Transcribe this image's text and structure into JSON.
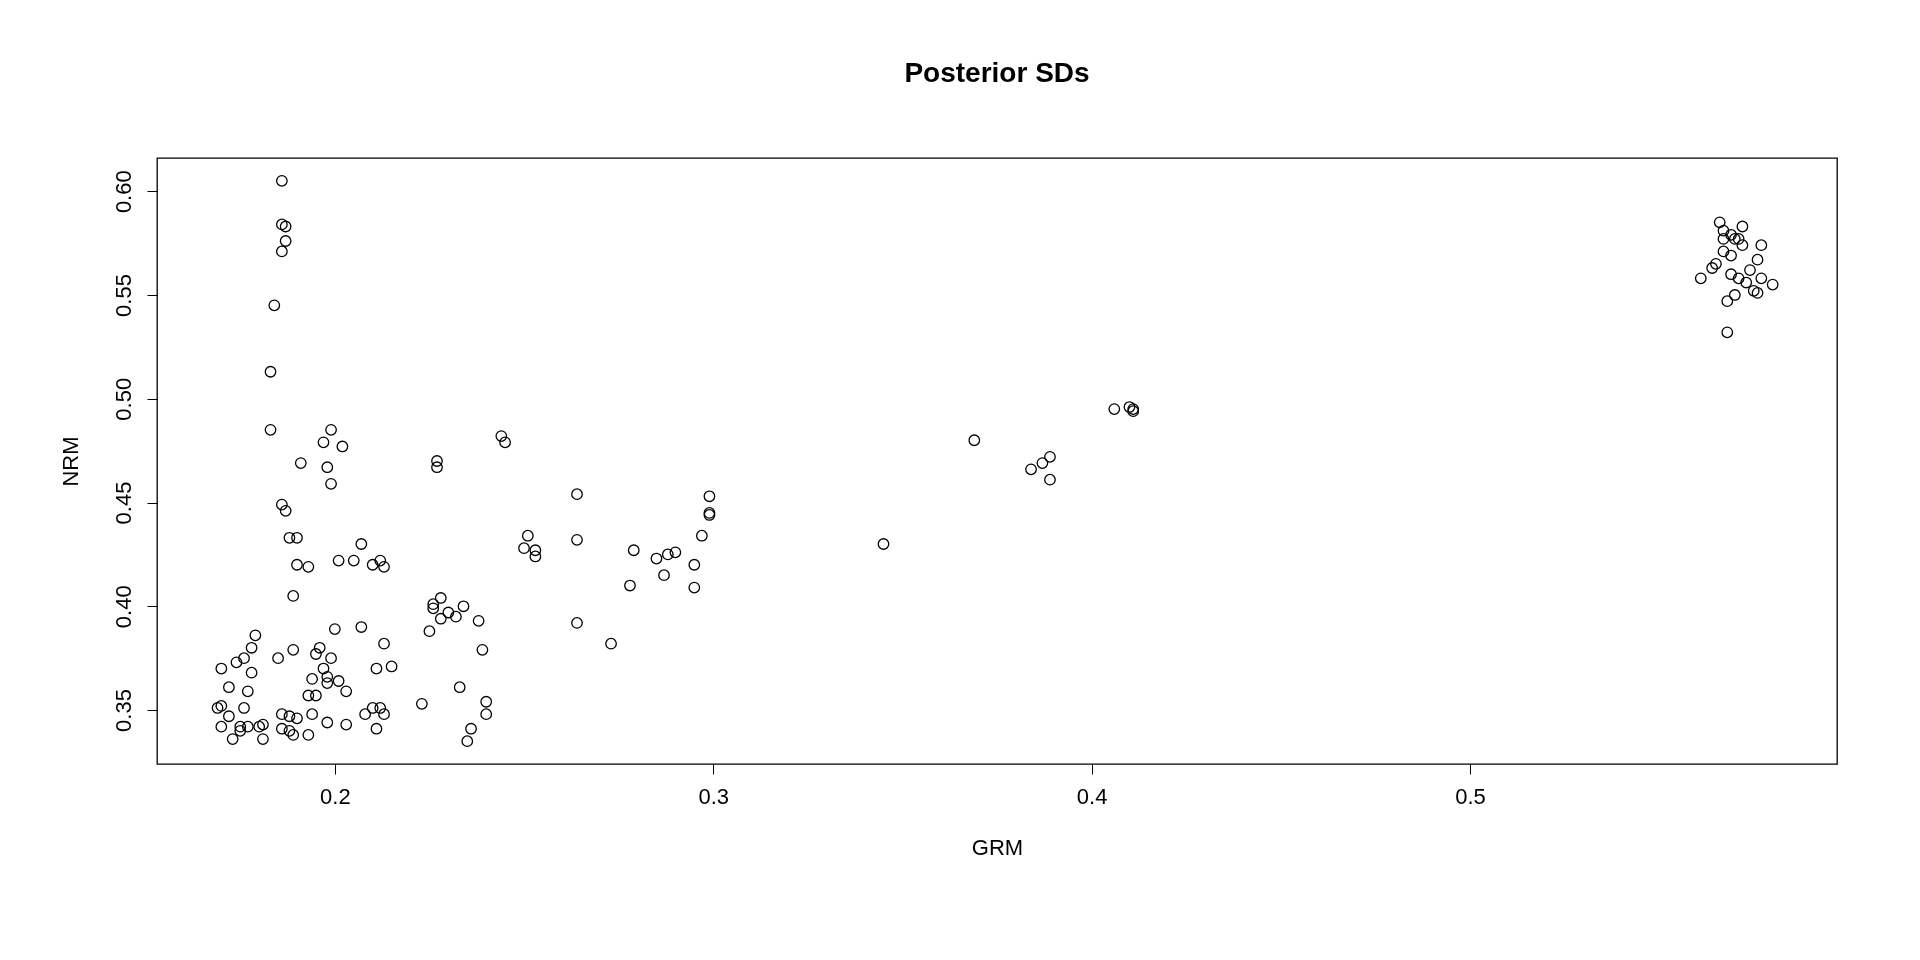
{
  "chart_data": {
    "type": "scatter",
    "title": "Posterior SDs",
    "xlabel": "GRM",
    "ylabel": "NRM",
    "marker": "circle",
    "grid": false,
    "xlim": [
      0.153,
      0.597
    ],
    "ylim": [
      0.324,
      0.616
    ],
    "xticks": [
      0.2,
      0.3,
      0.4,
      0.5
    ],
    "yticks": [
      0.35,
      {
        "value": 0.4,
        "label": "0.40"
      },
      0.45,
      {
        "value": 0.5,
        "label": "0.50"
      },
      0.55,
      {
        "value": 0.6,
        "label": "0.60"
      }
    ],
    "series": [
      {
        "color": "#000000",
        "x": [
          0.186,
          0.186,
          0.187,
          0.187,
          0.186,
          0.184,
          0.183,
          0.183,
          0.186,
          0.187,
          0.191,
          0.188,
          0.19,
          0.189,
          0.19,
          0.193,
          0.189,
          0.185,
          0.17,
          0.174,
          0.176,
          0.178,
          0.179,
          0.172,
          0.178,
          0.177,
          0.169,
          0.17,
          0.172,
          0.173,
          0.175,
          0.176,
          0.177,
          0.175,
          0.17,
          0.18,
          0.181,
          0.181,
          0.186,
          0.188,
          0.189,
          0.188,
          0.19,
          0.186,
          0.193,
          0.194,
          0.193,
          0.195,
          0.194,
          0.195,
          0.196,
          0.198,
          0.198,
          0.199,
          0.2,
          0.197,
          0.201,
          0.203,
          0.203,
          0.198,
          0.197,
          0.199,
          0.202,
          0.198,
          0.199,
          0.201,
          0.205,
          0.207,
          0.21,
          0.212,
          0.213,
          0.207,
          0.213,
          0.215,
          0.211,
          0.208,
          0.21,
          0.212,
          0.213,
          0.211,
          0.223,
          0.225,
          0.227,
          0.227,
          0.226,
          0.226,
          0.228,
          0.228,
          0.23,
          0.232,
          0.234,
          0.233,
          0.236,
          0.235,
          0.238,
          0.239,
          0.24,
          0.24,
          0.244,
          0.245,
          0.251,
          0.25,
          0.253,
          0.253,
          0.264,
          0.264,
          0.264,
          0.273,
          0.278,
          0.279,
          0.285,
          0.287,
          0.288,
          0.29,
          0.295,
          0.295,
          0.297,
          0.299,
          0.299,
          0.299,
          0.345,
          0.369,
          0.384,
          0.387,
          0.389,
          0.389,
          0.406,
          0.41,
          0.411,
          0.411,
          0.566,
          0.572,
          0.577,
          0.561,
          0.568,
          0.568,
          0.57,
          0.58,
          0.575,
          0.567,
          0.569,
          0.57,
          0.571,
          0.572,
          0.567,
          0.565,
          0.569,
          0.571,
          0.573,
          0.576,
          0.577,
          0.576,
          0.574,
          0.564,
          0.567,
          0.569
        ],
        "values": [
          0.605,
          0.584,
          0.583,
          0.576,
          0.571,
          0.545,
          0.513,
          0.485,
          0.449,
          0.446,
          0.469,
          0.433,
          0.433,
          0.405,
          0.42,
          0.419,
          0.379,
          0.375,
          0.37,
          0.373,
          0.375,
          0.38,
          0.386,
          0.361,
          0.368,
          0.359,
          0.351,
          0.352,
          0.347,
          0.336,
          0.342,
          0.351,
          0.342,
          0.34,
          0.342,
          0.342,
          0.336,
          0.343,
          0.348,
          0.347,
          0.338,
          0.34,
          0.346,
          0.341,
          0.338,
          0.348,
          0.357,
          0.357,
          0.365,
          0.377,
          0.38,
          0.366,
          0.363,
          0.375,
          0.389,
          0.37,
          0.364,
          0.359,
          0.343,
          0.344,
          0.479,
          0.485,
          0.477,
          0.467,
          0.459,
          0.422,
          0.422,
          0.43,
          0.42,
          0.422,
          0.419,
          0.39,
          0.382,
          0.371,
          0.37,
          0.348,
          0.351,
          0.351,
          0.348,
          0.341,
          0.353,
          0.388,
          0.47,
          0.467,
          0.399,
          0.401,
          0.404,
          0.394,
          0.397,
          0.395,
          0.4,
          0.361,
          0.341,
          0.335,
          0.393,
          0.379,
          0.354,
          0.348,
          0.482,
          0.479,
          0.434,
          0.428,
          0.427,
          0.424,
          0.454,
          0.432,
          0.392,
          0.382,
          0.41,
          0.427,
          0.423,
          0.415,
          0.425,
          0.426,
          0.42,
          0.409,
          0.434,
          0.453,
          0.445,
          0.444,
          0.43,
          0.48,
          0.466,
          0.469,
          0.472,
          0.461,
          0.495,
          0.496,
          0.495,
          0.494,
          0.585,
          0.583,
          0.574,
          0.558,
          0.532,
          0.547,
          0.55,
          0.555,
          0.552,
          0.571,
          0.569,
          0.577,
          0.577,
          0.574,
          0.577,
          0.565,
          0.56,
          0.558,
          0.556,
          0.567,
          0.558,
          0.551,
          0.562,
          0.563,
          0.581,
          0.579
        ]
      }
    ]
  }
}
